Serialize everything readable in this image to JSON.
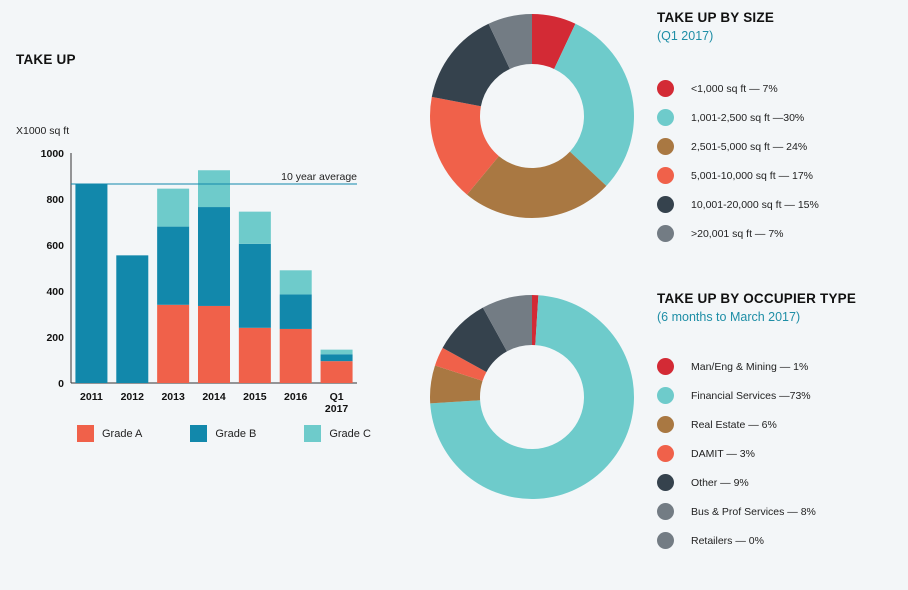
{
  "bar_title": "TAKE UP",
  "size_title": "TAKE UP BY SIZE",
  "size_subtitle": "(Q1 2017)",
  "occ_title": "TAKE UP BY OCCUPIER TYPE",
  "occ_subtitle": "(6 months to March 2017)",
  "chart_data": [
    {
      "type": "bar",
      "stacked": true,
      "title": "TAKE UP",
      "ylabel": "X1000 sq ft",
      "xlabel": "",
      "categories": [
        "2011",
        "2012",
        "2013",
        "2014",
        "2015",
        "2016",
        "Q1\n2017"
      ],
      "series": [
        {
          "name": "Grade A",
          "color": "#f0614a",
          "values": [
            0,
            0,
            340,
            335,
            240,
            235,
            95
          ]
        },
        {
          "name": "Grade B",
          "color": "#1288ab",
          "values": [
            865,
            555,
            340,
            430,
            365,
            150,
            30
          ]
        },
        {
          "name": "Grade C",
          "color": "#6ecbcb",
          "values": [
            0,
            0,
            165,
            160,
            140,
            105,
            20
          ]
        }
      ],
      "ylim": [
        0,
        1000
      ],
      "yticks": [
        0,
        200,
        400,
        600,
        800,
        1000
      ],
      "reference_line": {
        "label": "10 year average",
        "value": 865
      },
      "legend_position": "bottom"
    },
    {
      "type": "pie",
      "donut": true,
      "title": "TAKE UP BY SIZE",
      "subtitle": "(Q1 2017)",
      "slices": [
        {
          "label": "<1,000 sq ft — 7%",
          "value": 7,
          "color": "#d32a35"
        },
        {
          "label": "1,001-2,500 sq ft —30%",
          "value": 30,
          "color": "#6ecbcb"
        },
        {
          "label": "2,501-5,000 sq ft — 24%",
          "value": 24,
          "color": "#a97842"
        },
        {
          "label": "5,001-10,000 sq ft — 17%",
          "value": 17,
          "color": "#f0614a"
        },
        {
          "label": "10,001-20,000 sq ft — 15%",
          "value": 15,
          "color": "#35424d"
        },
        {
          "label": ">20,001 sq ft — 7%",
          "value": 7,
          "color": "#737c84"
        }
      ],
      "legend_position": "right"
    },
    {
      "type": "pie",
      "donut": true,
      "title": "TAKE UP BY OCCUPIER TYPE",
      "subtitle": "(6 months to March 2017)",
      "slices": [
        {
          "label": "Man/Eng & Mining — 1%",
          "value": 1,
          "color": "#d32a35"
        },
        {
          "label": "Financial Services —73%",
          "value": 73,
          "color": "#6ecbcb"
        },
        {
          "label": "Real Estate — 6%",
          "value": 6,
          "color": "#a97842"
        },
        {
          "label": "DAMIT — 3%",
          "value": 3,
          "color": "#f0614a"
        },
        {
          "label": "Other — 9%",
          "value": 9,
          "color": "#35424d"
        },
        {
          "label": "Bus & Prof Services — 8%",
          "value": 8,
          "color": "#737c84"
        },
        {
          "label": "Retailers — 0%",
          "value": 0,
          "color": "#737c84"
        }
      ],
      "legend_position": "right"
    }
  ]
}
